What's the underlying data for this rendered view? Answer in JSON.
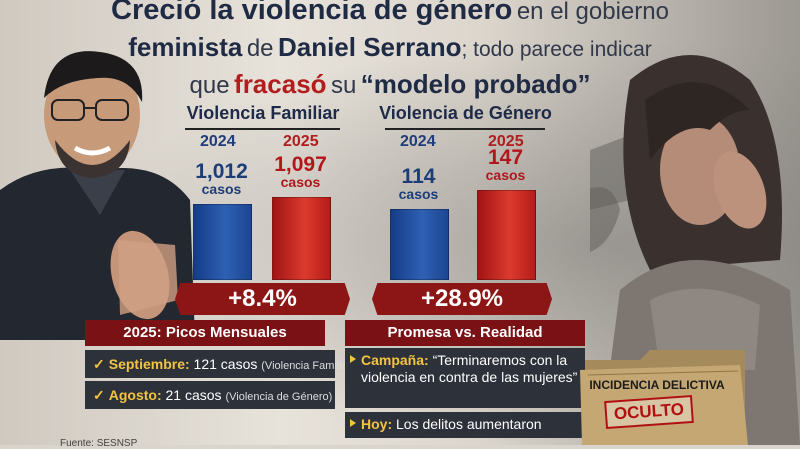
{
  "headline": {
    "line1_a": "Creció la violencia de género",
    "line1_b": "en el gobierno",
    "line2_a": "feminista",
    "line2_b": "de",
    "line2_c": "Daniel Serrano",
    "line2_d": "; todo parece indicar",
    "line3_a": "que",
    "line3_b": "fracasó",
    "line3_c": "su",
    "line3_d": "“modelo probado”"
  },
  "chart_data": [
    {
      "type": "bar",
      "title": "Violencia Familiar",
      "categories": [
        "2024",
        "2025"
      ],
      "values": [
        1012,
        1097
      ],
      "value_labels": [
        "1,012",
        "1,097"
      ],
      "unit_label": "casos",
      "change": "+8.4%"
    },
    {
      "type": "bar",
      "title": "Violencia de Género",
      "categories": [
        "2024",
        "2025"
      ],
      "values": [
        114,
        147
      ],
      "value_labels": [
        "114",
        "147"
      ],
      "unit_label": "casos",
      "change": "+28.9%"
    }
  ],
  "picos": {
    "title": "2025: Picos Mensuales",
    "rows": [
      {
        "key": "Septiembre:",
        "value": "121 casos",
        "note": "(Violencia Familiar)"
      },
      {
        "key": "Agosto:",
        "value": "21 casos",
        "note": "(Violencia de Género)"
      }
    ]
  },
  "promesa": {
    "title": "Promesa vs. Realidad",
    "campaign_key": "Campaña:",
    "campaign_text": "“Terminaremos con la violencia en contra de las mujeres”",
    "hoy_key": "Hoy:",
    "hoy_text": "Los delitos aumentaron"
  },
  "folder": {
    "label": "INCIDENCIA DELICTIVA",
    "stamp": "OCULTO"
  },
  "source": "Fuente: SESNSP",
  "colors": {
    "blue": "#2a5aa8",
    "red": "#c8261f",
    "dark_red": "#8c1616",
    "navy": "#1d2a48",
    "gold": "#f2c440"
  }
}
